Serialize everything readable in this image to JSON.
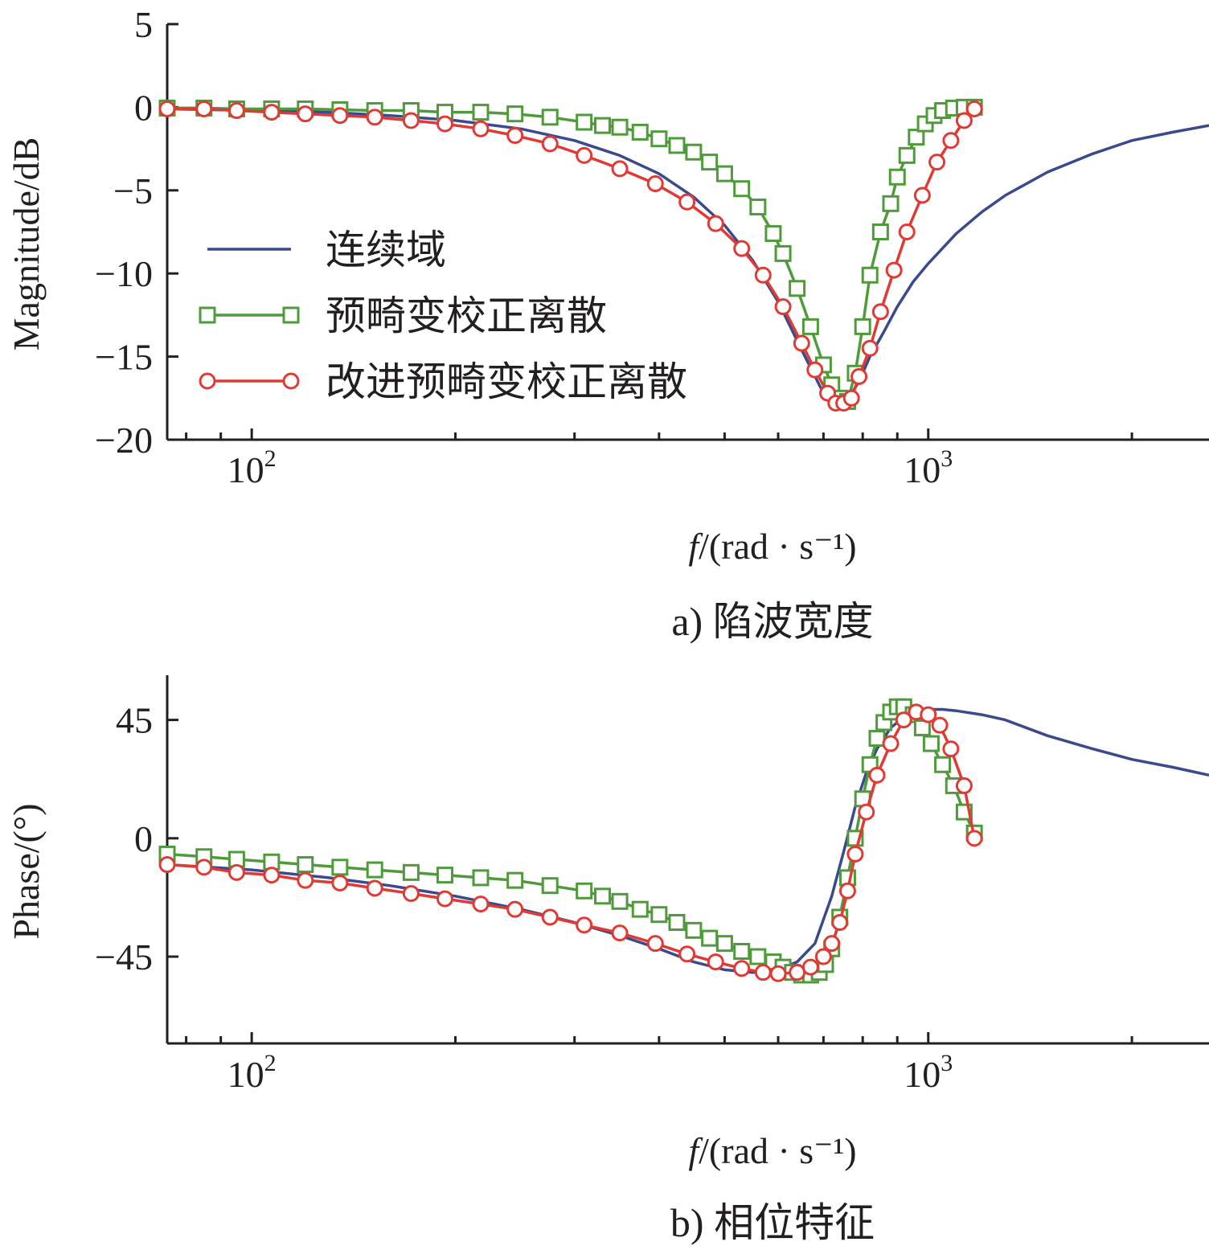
{
  "chart_data": [
    {
      "type": "line",
      "caption": "a) 陷波宽度",
      "xlabel": "f/(rad · s⁻¹)",
      "xlabel_italic": "f",
      "xlabel_rest": "/(rad · s⁻¹)",
      "ylabel": "Magnitude/dB",
      "xscale": "log",
      "xlim": [
        75,
        2600
      ],
      "ylim": [
        -20,
        5
      ],
      "yticks": [
        5,
        0,
        -5,
        -10,
        -15,
        -20
      ],
      "yticks_labels": [
        "5",
        "0",
        "−5",
        "−10",
        "−15",
        "−20"
      ],
      "xticks_major": [
        {
          "value": 100,
          "base": "10",
          "exp": "2"
        },
        {
          "value": 1000,
          "base": "10",
          "exp": "3"
        }
      ],
      "legend_position": "center-left",
      "series": [
        {
          "name": "连续域",
          "color": "#3b4a8c",
          "marker": "none",
          "x": [
            75,
            100,
            130,
            160,
            200,
            250,
            300,
            350,
            400,
            450,
            500,
            550,
            600,
            650,
            700,
            730,
            760,
            790,
            820,
            860,
            900,
            950,
            1000,
            1100,
            1200,
            1300,
            1500,
            1750,
            2000,
            2300,
            2600
          ],
          "y": [
            -0.1,
            -0.2,
            -0.3,
            -0.5,
            -0.8,
            -1.3,
            -2.0,
            -2.9,
            -4.0,
            -5.4,
            -7.1,
            -9.2,
            -11.7,
            -14.6,
            -17.2,
            -17.9,
            -17.6,
            -16.5,
            -15.0,
            -13.5,
            -12.0,
            -10.5,
            -9.4,
            -7.6,
            -6.3,
            -5.3,
            -3.9,
            -2.8,
            -2.0,
            -1.5,
            -1.1
          ]
        },
        {
          "name": "预畸变校正离散",
          "color": "#4f9a3a",
          "marker": "square",
          "x": [
            75,
            85,
            95,
            107,
            120,
            135,
            152,
            172,
            193,
            218,
            245,
            276,
            310,
            330,
            350,
            375,
            400,
            425,
            450,
            475,
            500,
            530,
            560,
            590,
            610,
            640,
            670,
            700,
            720,
            740,
            760,
            780,
            800,
            820,
            850,
            880,
            900,
            930,
            960,
            990,
            1020,
            1050,
            1090,
            1130,
            1170
          ],
          "y": [
            -0.05,
            -0.05,
            -0.1,
            -0.1,
            -0.1,
            -0.15,
            -0.2,
            -0.2,
            -0.3,
            -0.3,
            -0.4,
            -0.6,
            -0.9,
            -1.1,
            -1.2,
            -1.5,
            -1.9,
            -2.3,
            -2.7,
            -3.3,
            -4.0,
            -4.9,
            -6.0,
            -7.6,
            -8.8,
            -10.9,
            -13.2,
            -15.5,
            -16.7,
            -17.5,
            -17.7,
            -16.0,
            -13.2,
            -10.1,
            -7.5,
            -5.8,
            -4.2,
            -2.9,
            -1.8,
            -1.0,
            -0.5,
            -0.2,
            -0.05,
            0.0,
            0.0
          ]
        },
        {
          "name": "改进预畸变校正离散",
          "color": "#e03a35",
          "marker": "circle",
          "x": [
            75,
            85,
            95,
            107,
            120,
            135,
            152,
            172,
            193,
            218,
            245,
            276,
            310,
            350,
            395,
            440,
            485,
            530,
            570,
            610,
            650,
            680,
            710,
            730,
            750,
            770,
            790,
            820,
            850,
            890,
            930,
            980,
            1030,
            1080,
            1130,
            1170
          ],
          "y": [
            -0.1,
            -0.1,
            -0.2,
            -0.3,
            -0.4,
            -0.5,
            -0.6,
            -0.8,
            -1.0,
            -1.3,
            -1.7,
            -2.2,
            -2.9,
            -3.7,
            -4.6,
            -5.7,
            -7.0,
            -8.5,
            -10.1,
            -12.0,
            -14.2,
            -15.8,
            -17.2,
            -17.8,
            -17.8,
            -17.5,
            -16.2,
            -14.5,
            -12.3,
            -9.8,
            -7.5,
            -5.3,
            -3.3,
            -2.0,
            -0.8,
            -0.1
          ]
        }
      ]
    },
    {
      "type": "line",
      "caption": "b) 相位特征",
      "xlabel": "f/(rad · s⁻¹)",
      "xlabel_italic": "f",
      "xlabel_rest": "/(rad · s⁻¹)",
      "ylabel": "Phase/(°)",
      "xscale": "log",
      "xlim": [
        75,
        2600
      ],
      "ylim": [
        -78,
        62
      ],
      "yticks": [
        45,
        0,
        -45
      ],
      "yticks_labels": [
        "45",
        "0",
        "−45"
      ],
      "xticks_major": [
        {
          "value": 100,
          "base": "10",
          "exp": "2"
        },
        {
          "value": 1000,
          "base": "10",
          "exp": "3"
        }
      ],
      "legend_position": "none",
      "series": [
        {
          "name": "连续域",
          "color": "#3b4a8c",
          "marker": "none",
          "x": [
            75,
            100,
            130,
            160,
            200,
            250,
            300,
            350,
            400,
            450,
            500,
            550,
            600,
            640,
            680,
            720,
            750,
            780,
            810,
            840,
            880,
            920,
            960,
            1000,
            1050,
            1100,
            1200,
            1300,
            1500,
            1750,
            2000,
            2300,
            2600
          ],
          "y": [
            -10,
            -12,
            -15,
            -18,
            -22,
            -27,
            -32,
            -37,
            -42,
            -47,
            -50,
            -51,
            -50,
            -47,
            -40,
            -22,
            -5,
            12,
            25,
            34,
            42,
            46,
            48,
            49,
            49,
            48.5,
            47,
            45,
            39,
            34,
            30,
            27,
            24
          ]
        },
        {
          "name": "预畸变校正离散",
          "color": "#4f9a3a",
          "marker": "square",
          "x": [
            75,
            85,
            95,
            107,
            120,
            135,
            152,
            172,
            193,
            218,
            245,
            276,
            310,
            330,
            350,
            375,
            400,
            425,
            450,
            475,
            500,
            530,
            560,
            590,
            610,
            630,
            650,
            670,
            690,
            705,
            720,
            740,
            760,
            780,
            800,
            820,
            840,
            860,
            880,
            900,
            920,
            950,
            980,
            1010,
            1050,
            1090,
            1130,
            1170
          ],
          "y": [
            -6,
            -7,
            -8,
            -9,
            -10,
            -11,
            -12,
            -13,
            -14,
            -15,
            -16,
            -18,
            -20,
            -22,
            -24,
            -27,
            -29,
            -32,
            -35,
            -38,
            -40,
            -43,
            -45,
            -47,
            -49,
            -51,
            -52,
            -52,
            -51,
            -48,
            -42,
            -30,
            -15,
            0,
            15,
            28,
            38,
            44,
            48,
            50,
            50,
            47,
            42,
            36,
            28,
            20,
            10,
            2
          ]
        },
        {
          "name": "改进预畸变校正离散",
          "color": "#e03a35",
          "marker": "circle",
          "x": [
            75,
            85,
            95,
            107,
            120,
            135,
            152,
            172,
            193,
            218,
            245,
            276,
            310,
            350,
            395,
            440,
            485,
            530,
            570,
            600,
            640,
            670,
            700,
            720,
            740,
            760,
            780,
            810,
            840,
            880,
            920,
            960,
            1000,
            1040,
            1080,
            1130,
            1170
          ],
          "y": [
            -10,
            -11,
            -13,
            -14,
            -16,
            -17,
            -19,
            -21,
            -23,
            -25,
            -27,
            -30,
            -33,
            -36,
            -40,
            -44,
            -47,
            -49.5,
            -51,
            -51.5,
            -51,
            -49,
            -45,
            -40,
            -32,
            -20,
            -6,
            10,
            24,
            36,
            45,
            48,
            47,
            43,
            34,
            20,
            0
          ]
        }
      ]
    }
  ]
}
